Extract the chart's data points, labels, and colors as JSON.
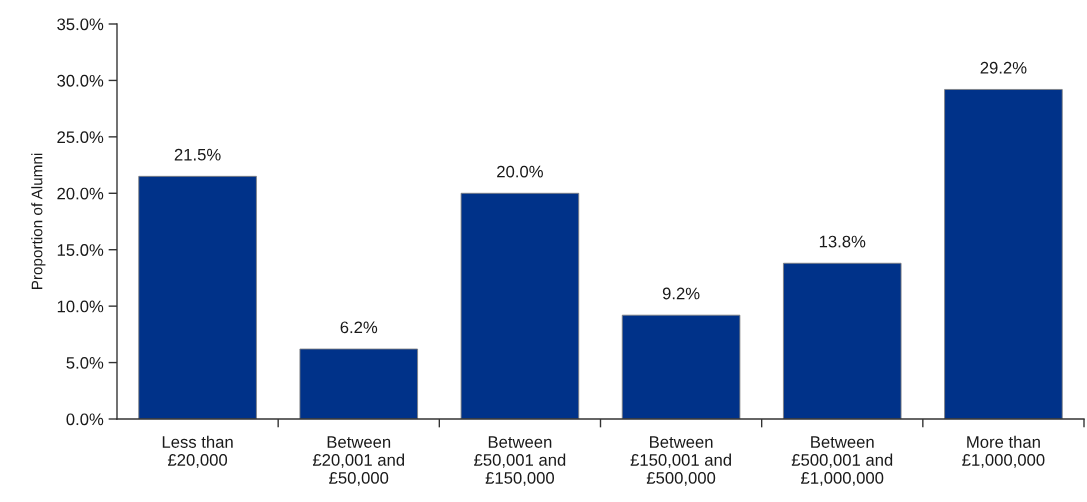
{
  "chart_data": {
    "type": "bar",
    "ylabel": "Proportion of Alumni",
    "categories": [
      "Less than\n£20,000",
      "Between\n£20,001 and\n£50,000",
      "Between\n£50,001 and\n£150,000",
      "Between\n£150,001 and\n£500,000",
      "Between\n£500,001 and\n£1,000,000",
      "More than\n£1,000,000"
    ],
    "values": [
      21.5,
      6.2,
      20.0,
      9.2,
      13.8,
      29.2
    ],
    "value_labels": [
      "21.5%",
      "6.2%",
      "20.0%",
      "9.2%",
      "13.8%",
      "29.2%"
    ],
    "color": "#003289",
    "ylim": [
      0,
      35
    ],
    "yticks": [
      {
        "value": 0,
        "label": "0.0%"
      },
      {
        "value": 5,
        "label": "5.0%"
      },
      {
        "value": 10,
        "label": "10.0%"
      },
      {
        "value": 15,
        "label": "15.0%"
      },
      {
        "value": 20,
        "label": "20.0%"
      },
      {
        "value": 25,
        "label": "25.0%"
      },
      {
        "value": 30,
        "label": "30.0%"
      },
      {
        "value": 35,
        "label": "35.0%"
      }
    ],
    "grid": false,
    "legend": false
  }
}
